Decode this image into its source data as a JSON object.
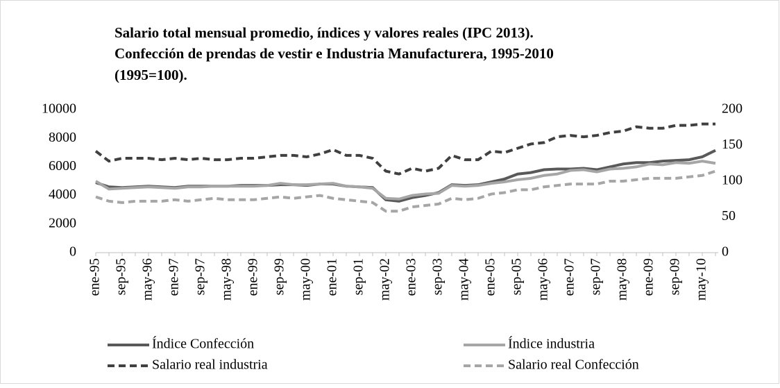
{
  "chart_data": {
    "type": "line",
    "title": [
      "Salario total mensual promedio, índices y valores reales (IPC 2013).",
      "Confección de prendas de vestir e Industria Manufacturera, 1995-2010",
      "(1995=100)."
    ],
    "categories": [
      "ene-95",
      null,
      "sep-95",
      null,
      "may-96",
      null,
      "ene-97",
      null,
      "sep-97",
      null,
      "may-98",
      null,
      "ene-99",
      null,
      "sep-99",
      null,
      "may-00",
      null,
      "ene-01",
      null,
      "sep-01",
      null,
      "may-02",
      null,
      "ene-03",
      null,
      "sep-03",
      null,
      "may-04",
      null,
      "ene-05",
      null,
      "sep-05",
      null,
      "may-06",
      null,
      "ene-07",
      null,
      "sep-07",
      null,
      "may-08",
      null,
      "ene-09",
      null,
      "sep-09",
      null,
      "may-10",
      null
    ],
    "series": [
      {
        "name": "Índice Confección",
        "color": "#595959",
        "dashed": false,
        "axis": "y2",
        "values": [
          98,
          92,
          91,
          92,
          93,
          92,
          91,
          93,
          93,
          93,
          93,
          94,
          94,
          94,
          95,
          95,
          94,
          96,
          96,
          93,
          92,
          91,
          74,
          72,
          77,
          80,
          84,
          95,
          94,
          95,
          99,
          103,
          110,
          112,
          116,
          117,
          117,
          118,
          116,
          120,
          124,
          126,
          126,
          128,
          129,
          130,
          134,
          143
        ]
      },
      {
        "name": "Índice industria",
        "color": "#a6a6a6",
        "dashed": false,
        "axis": "y2",
        "values": [
          100,
          89,
          90,
          91,
          92,
          91,
          90,
          92,
          92,
          93,
          93,
          93,
          93,
          94,
          97,
          95,
          95,
          96,
          97,
          93,
          92,
          90,
          76,
          75,
          80,
          82,
          83,
          94,
          93,
          94,
          97,
          99,
          102,
          104,
          108,
          110,
          115,
          116,
          113,
          117,
          118,
          120,
          124,
          123,
          126,
          125,
          128,
          125
        ]
      },
      {
        "name": "Salario real industria",
        "color": "#404040",
        "dashed": true,
        "axis": "y",
        "values": [
          7100,
          6400,
          6600,
          6600,
          6600,
          6500,
          6600,
          6500,
          6600,
          6500,
          6500,
          6600,
          6600,
          6700,
          6800,
          6800,
          6700,
          6900,
          7200,
          6800,
          6800,
          6600,
          5700,
          5500,
          5900,
          5700,
          5900,
          6800,
          6500,
          6500,
          7100,
          7000,
          7300,
          7600,
          7700,
          8100,
          8200,
          8100,
          8200,
          8400,
          8500,
          8800,
          8700,
          8700,
          8900,
          8900,
          9000,
          9000
        ]
      },
      {
        "name": "Salario real Confección",
        "color": "#a6a6a6",
        "dashed": true,
        "axis": "y",
        "values": [
          3900,
          3600,
          3500,
          3600,
          3600,
          3600,
          3700,
          3600,
          3700,
          3800,
          3700,
          3700,
          3700,
          3800,
          3900,
          3800,
          3900,
          4000,
          3800,
          3700,
          3600,
          3500,
          2900,
          2900,
          3200,
          3300,
          3400,
          3800,
          3700,
          3800,
          4100,
          4200,
          4400,
          4400,
          4600,
          4700,
          4800,
          4800,
          4800,
          5000,
          5000,
          5100,
          5200,
          5200,
          5200,
          5300,
          5400,
          5700
        ]
      }
    ],
    "ylim": [
      0,
      10000
    ],
    "yticks": [
      0,
      2000,
      4000,
      6000,
      8000,
      10000
    ],
    "y2lim": [
      0,
      200
    ],
    "y2ticks": [
      0,
      50,
      100,
      150,
      200
    ],
    "grid": false
  }
}
